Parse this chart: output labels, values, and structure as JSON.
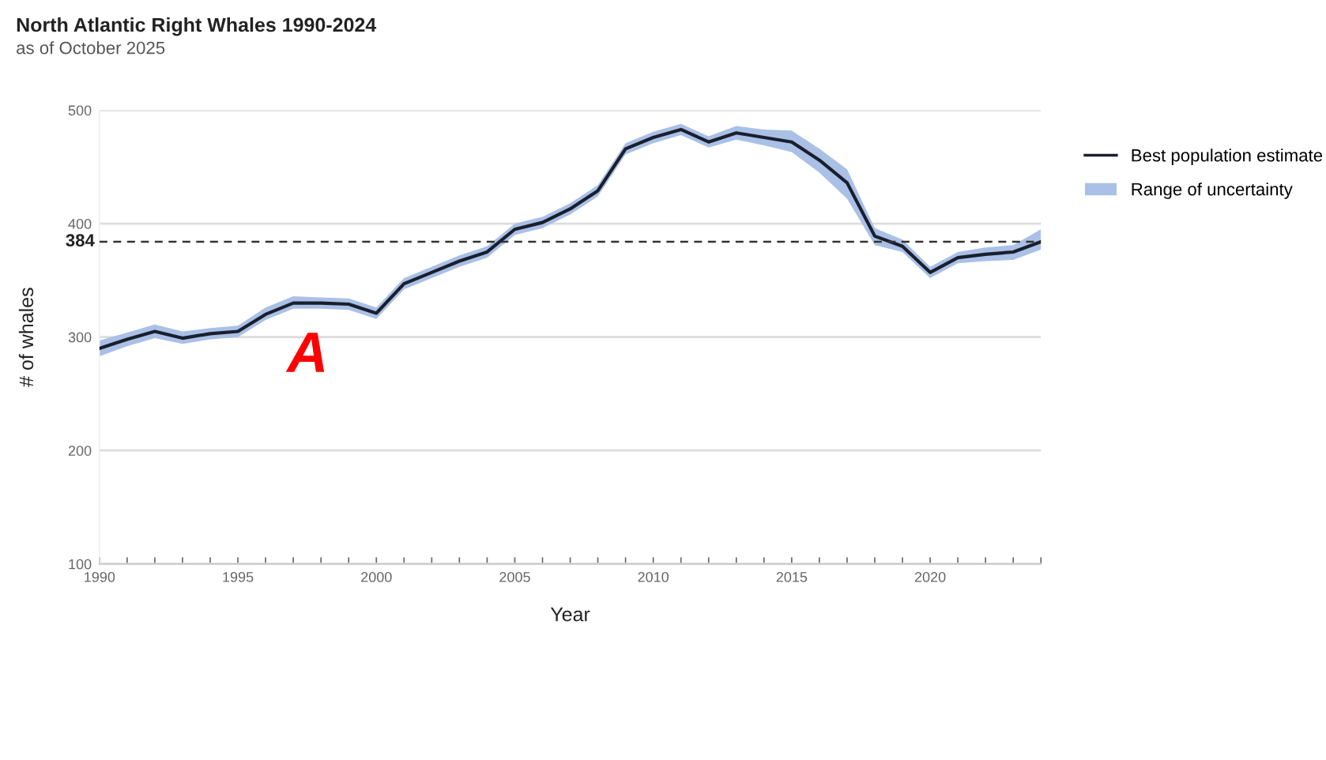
{
  "chart_data": {
    "type": "line",
    "title": "North Atlantic Right Whales 1990-2024",
    "subtitle": "as of October 2025",
    "xlabel": "Year",
    "ylabel": "# of whales",
    "x": [
      1990,
      1991,
      1992,
      1993,
      1994,
      1995,
      1996,
      1997,
      1998,
      1999,
      2000,
      2001,
      2002,
      2003,
      2004,
      2005,
      2006,
      2007,
      2008,
      2009,
      2010,
      2011,
      2012,
      2013,
      2014,
      2015,
      2016,
      2017,
      2018,
      2019,
      2020,
      2021,
      2022,
      2023,
      2024
    ],
    "series": [
      {
        "name": "Best population estimate",
        "color": "#1a1f2e",
        "values": [
          290,
          298,
          305,
          299,
          303,
          305,
          320,
          330,
          330,
          329,
          321,
          347,
          357,
          367,
          375,
          395,
          401,
          413,
          429,
          466,
          476,
          483,
          472,
          480,
          476,
          472,
          456,
          436,
          389,
          380,
          357,
          370,
          373,
          375,
          384
        ],
        "lower": [
          283,
          292,
          299,
          294,
          298,
          300,
          315,
          325,
          325,
          324,
          316,
          342,
          352,
          362,
          370,
          390,
          396,
          408,
          424,
          461,
          471,
          478,
          467,
          474,
          469,
          463,
          445,
          422,
          381,
          375,
          352,
          365,
          367,
          368,
          377
        ],
        "upper": [
          297,
          304,
          311,
          305,
          308,
          310,
          326,
          336,
          335,
          334,
          326,
          352,
          362,
          372,
          380,
          400,
          406,
          418,
          434,
          471,
          481,
          488,
          477,
          486,
          483,
          482,
          466,
          448,
          396,
          386,
          362,
          375,
          379,
          381,
          395
        ]
      }
    ],
    "xlim": [
      1990,
      2024
    ],
    "ylim": [
      100,
      500
    ],
    "xticks": [
      1990,
      {
        "value": 1991,
        "label": null
      },
      {
        "value": 1992,
        "label": null
      },
      {
        "value": 1993,
        "label": null
      },
      {
        "value": 1994,
        "label": null
      },
      1995,
      {
        "value": 1996,
        "label": null
      },
      {
        "value": 1997,
        "label": null
      },
      {
        "value": 1998,
        "label": null
      },
      {
        "value": 1999,
        "label": null
      },
      2000,
      {
        "value": 2001,
        "label": null
      },
      {
        "value": 2002,
        "label": null
      },
      {
        "value": 2003,
        "label": null
      },
      {
        "value": 2004,
        "label": null
      },
      2005,
      {
        "value": 2006,
        "label": null
      },
      {
        "value": 2007,
        "label": null
      },
      {
        "value": 2008,
        "label": null
      },
      {
        "value": 2009,
        "label": null
      },
      2010,
      {
        "value": 2011,
        "label": null
      },
      {
        "value": 2012,
        "label": null
      },
      {
        "value": 2013,
        "label": null
      },
      {
        "value": 2014,
        "label": null
      },
      2015,
      {
        "value": 2016,
        "label": null
      },
      {
        "value": 2017,
        "label": null
      },
      {
        "value": 2018,
        "label": null
      },
      {
        "value": 2019,
        "label": null
      },
      2020,
      {
        "value": 2021,
        "label": null
      },
      {
        "value": 2022,
        "label": null
      },
      {
        "value": 2023,
        "label": null
      },
      {
        "value": 2024,
        "label": null
      }
    ],
    "yticks": [
      100,
      200,
      300,
      400,
      500
    ],
    "ref_lines": [
      {
        "axis": "y",
        "value": 384,
        "label": "384",
        "color": "#333333",
        "line_style": "dashed"
      }
    ],
    "annotations": [
      "Range of uncertainty",
      "A"
    ],
    "grid": "y",
    "legend": "right",
    "marker": "none",
    "line_style": "solid"
  }
}
